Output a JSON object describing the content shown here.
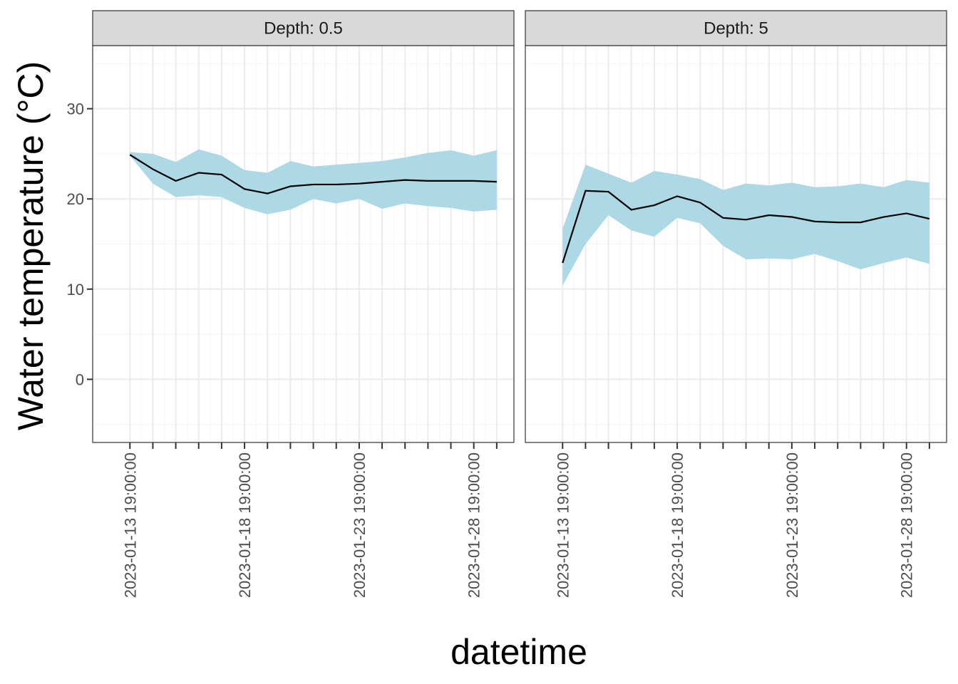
{
  "chart_data": {
    "type": "line",
    "facet_label_prefix": "Depth: ",
    "xlabel": "datetime",
    "ylabel": "Water temperature (°C)",
    "ylim": [
      -7,
      37
    ],
    "yticks": [
      0,
      10,
      20,
      30
    ],
    "x": [
      "2023-01-13",
      "2023-01-14",
      "2023-01-15",
      "2023-01-16",
      "2023-01-17",
      "2023-01-18",
      "2023-01-19",
      "2023-01-20",
      "2023-01-21",
      "2023-01-22",
      "2023-01-23",
      "2023-01-24",
      "2023-01-25",
      "2023-01-26",
      "2023-01-27",
      "2023-01-28",
      "2023-01-29"
    ],
    "xlim": [
      "2023-01-12 04:00",
      "2023-01-30 13:00"
    ],
    "xtick_labels": [
      "2023-01-13 19:00:00",
      "2023-01-18 19:00:00",
      "2023-01-23 19:00:00",
      "2023-01-28 19:00:00"
    ],
    "xtick_label_indices": [
      0,
      5,
      10,
      15
    ],
    "grid": true,
    "colors": {
      "ribbon": "#add8e6",
      "line": "#000000",
      "strip_fill": "#d9d9d9",
      "grid_major": "#ebebeb",
      "grid_minor": "#f5f5f5",
      "panel_border": "#333333"
    },
    "panels": [
      {
        "depth": "0.5",
        "strip_label": "Depth: 0.5",
        "mean": [
          24.9,
          23.3,
          22.0,
          22.9,
          22.7,
          21.1,
          20.6,
          21.4,
          21.6,
          21.6,
          21.7,
          21.9,
          22.1,
          22.0,
          22.0,
          22.0,
          21.9
        ],
        "lower": [
          24.8,
          21.7,
          20.2,
          20.4,
          20.2,
          19.0,
          18.3,
          18.8,
          20.0,
          19.5,
          20.0,
          18.9,
          19.5,
          19.2,
          19.0,
          18.6,
          18.8
        ],
        "upper": [
          25.2,
          25.0,
          24.1,
          25.5,
          24.8,
          23.2,
          22.9,
          24.2,
          23.6,
          23.8,
          24.0,
          24.2,
          24.6,
          25.1,
          25.4,
          24.8,
          25.4
        ]
      },
      {
        "depth": "5",
        "strip_label": "Depth: 5",
        "mean": [
          12.9,
          20.9,
          20.8,
          18.8,
          19.3,
          20.3,
          19.6,
          17.9,
          17.7,
          18.2,
          18.0,
          17.5,
          17.4,
          17.4,
          18.0,
          18.4,
          17.8
        ],
        "lower": [
          10.4,
          15.0,
          18.2,
          16.5,
          15.8,
          17.9,
          17.3,
          14.8,
          13.3,
          13.4,
          13.3,
          13.9,
          13.1,
          12.2,
          12.9,
          13.5,
          12.8
        ],
        "upper": [
          16.7,
          23.8,
          22.8,
          21.8,
          23.1,
          22.7,
          22.2,
          21.0,
          21.7,
          21.5,
          21.8,
          21.3,
          21.4,
          21.7,
          21.3,
          22.1,
          21.8
        ]
      }
    ]
  }
}
